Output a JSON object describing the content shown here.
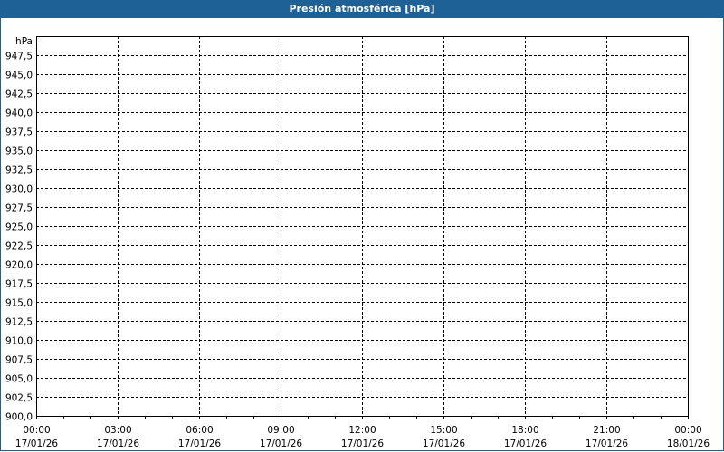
{
  "window": {
    "title": "Presión atmosférica [hPa]",
    "accent": "#1d6197"
  },
  "chart_data": {
    "type": "line",
    "title": "Presión atmosférica [hPa]",
    "ylabel": "hPa",
    "ylim": [
      900,
      950
    ],
    "yticks": [
      "900,0",
      "902,5",
      "905,0",
      "907,5",
      "910,0",
      "912,5",
      "915,0",
      "917,5",
      "920,0",
      "922,5",
      "925,0",
      "927,5",
      "930,0",
      "932,5",
      "935,0",
      "937,5",
      "940,0",
      "942,5",
      "945,0",
      "947,5"
    ],
    "xticks": [
      {
        "time": "00:00",
        "date": "17/01/26"
      },
      {
        "time": "03:00",
        "date": "17/01/26"
      },
      {
        "time": "06:00",
        "date": "17/01/26"
      },
      {
        "time": "09:00",
        "date": "17/01/26"
      },
      {
        "time": "12:00",
        "date": "17/01/26"
      },
      {
        "time": "15:00",
        "date": "17/01/26"
      },
      {
        "time": "18:00",
        "date": "17/01/26"
      },
      {
        "time": "21:00",
        "date": "17/01/26"
      },
      {
        "time": "00:00",
        "date": "18/01/26"
      }
    ],
    "xlim": [
      "17/01/26 00:00",
      "18/01/26 00:00"
    ],
    "grid": true,
    "series": []
  }
}
